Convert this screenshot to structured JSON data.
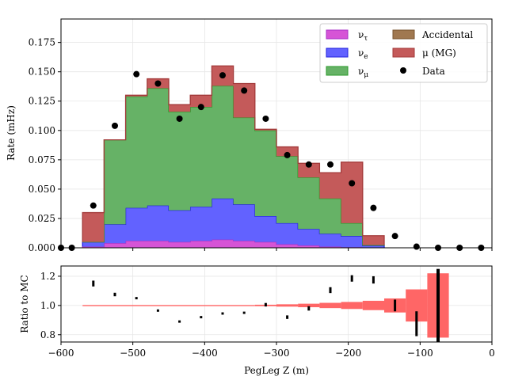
{
  "chart_data": [
    {
      "type": "histogram-stacked",
      "ylabel": "Rate (mHz)",
      "xlabel": "",
      "xlim": [
        -600,
        0
      ],
      "ylim": [
        0,
        0.195
      ],
      "yticks": [
        "0.000",
        "0.025",
        "0.050",
        "0.075",
        "0.100",
        "0.125",
        "0.150",
        "0.175"
      ],
      "ytick_values": [
        0,
        0.025,
        0.05,
        0.075,
        0.1,
        0.125,
        0.15,
        0.175
      ],
      "grid": true,
      "legend_position": "top-right",
      "bin_edges": [
        -570,
        -540,
        -510,
        -480,
        -450,
        -420,
        -390,
        -360,
        -330,
        -300,
        -270,
        -240,
        -210,
        -180,
        -150
      ],
      "series": [
        {
          "name": "ντ",
          "label_display": "ν",
          "subscript": "τ",
          "color": "#d654d6",
          "edge": "#a832c8",
          "values": [
            0.001,
            0.004,
            0.006,
            0.006,
            0.005,
            0.006,
            0.007,
            0.006,
            0.005,
            0.003,
            0.002,
            0.001,
            0.0005,
            0.0002
          ]
        },
        {
          "name": "νe",
          "label_display": "ν",
          "subscript": "e",
          "color": "#6262ff",
          "edge": "#2222dd",
          "values": [
            0.004,
            0.016,
            0.028,
            0.03,
            0.027,
            0.029,
            0.035,
            0.031,
            0.022,
            0.018,
            0.014,
            0.011,
            0.0095,
            0.0016
          ]
        },
        {
          "name": "νμ",
          "label_display": "ν",
          "subscript": "μ",
          "color": "#66b266",
          "edge": "#2a9a2a",
          "values": [
            0,
            0.072,
            0.095,
            0.1,
            0.084,
            0.085,
            0.096,
            0.074,
            0.073,
            0.057,
            0.044,
            0.03,
            0.011,
            0.0005
          ]
        },
        {
          "name": "Accidental",
          "label_display": "Accidental",
          "subscript": "",
          "color": "#a07850",
          "edge": "#7a5630",
          "values": [
            0,
            0,
            0,
            0,
            0,
            0,
            0,
            0,
            0,
            0,
            0,
            0,
            0,
            0
          ]
        },
        {
          "name": "μ (MG)",
          "label_display": "μ (MG)",
          "subscript": "",
          "color": "#c45a5a",
          "edge": "#a33a3a",
          "values": [
            0.025,
            0,
            0.001,
            0.008,
            0.006,
            0.01,
            0.017,
            0.029,
            0.001,
            0.008,
            0.012,
            0.022,
            0.052,
            0.008
          ]
        }
      ],
      "data_points": {
        "name": "Data",
        "x": [
          -600,
          -585,
          -555,
          -525,
          -495,
          -465,
          -435,
          -405,
          -375,
          -345,
          -315,
          -285,
          -255,
          -225,
          -195,
          -165,
          -135,
          -105,
          -75,
          -45,
          -15
        ],
        "y": [
          0,
          0,
          0.036,
          0.104,
          0.148,
          0.14,
          0.11,
          0.12,
          0.147,
          0.134,
          0.11,
          0.079,
          0.071,
          0.071,
          0.055,
          0.034,
          0.01,
          0.001,
          0,
          0,
          0
        ]
      },
      "legend_col1": [
        "ντ",
        "νe",
        "νμ"
      ],
      "legend_col2": [
        "Accidental",
        "μ (MG)",
        "Data"
      ]
    },
    {
      "type": "ratio",
      "ylabel": "Ratio to MC",
      "xlabel": "PegLeg Z (m)",
      "xlim": [
        -600,
        0
      ],
      "ylim": [
        0.75,
        1.27
      ],
      "xticks": [
        "−600",
        "−500",
        "−400",
        "−300",
        "−200",
        "−100",
        "0"
      ],
      "xtick_values": [
        -600,
        -500,
        -400,
        -300,
        -200,
        -100,
        0
      ],
      "yticks": [
        "0.8",
        "1.0",
        "1.2"
      ],
      "ytick_values": [
        0.8,
        1.0,
        1.2
      ],
      "grid": true,
      "band_color": "#ff6666",
      "band_edges": [
        -570,
        -330,
        -300,
        -270,
        -240,
        -210,
        -180,
        -150,
        -120,
        -90,
        -60
      ],
      "band_halfwidth": [
        0.003,
        0.005,
        0.008,
        0.012,
        0.018,
        0.024,
        0.032,
        0.048,
        0.11,
        0.22
      ],
      "points": {
        "x": [
          -555,
          -525,
          -495,
          -465,
          -435,
          -405,
          -375,
          -345,
          -315,
          -285,
          -255,
          -225,
          -195,
          -165,
          -135,
          -105,
          -75
        ],
        "y": [
          1.15,
          1.075,
          1.05,
          0.965,
          0.89,
          0.92,
          0.945,
          0.95,
          1.005,
          0.92,
          0.98,
          1.105,
          1.185,
          1.175,
          1.0,
          0.875,
          1.0
        ],
        "err": [
          0.02,
          0.012,
          0.008,
          0.008,
          0.008,
          0.008,
          0.008,
          0.008,
          0.012,
          0.012,
          0.015,
          0.02,
          0.022,
          0.025,
          0.04,
          0.085,
          0.25
        ]
      }
    }
  ]
}
